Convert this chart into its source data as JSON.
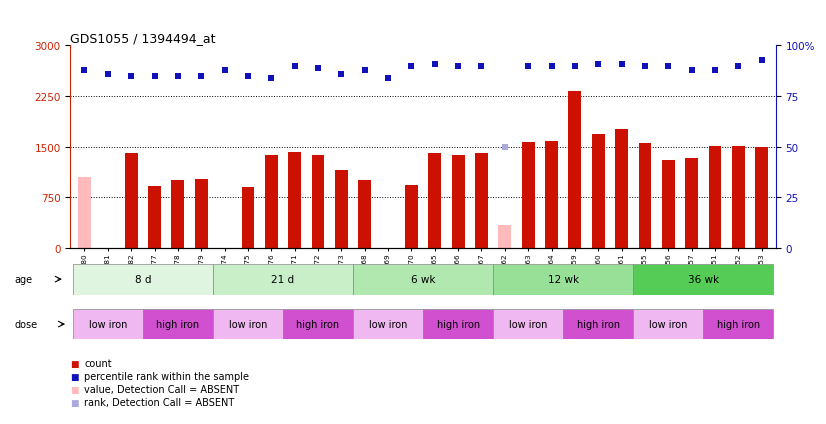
{
  "title": "GDS1055 / 1394494_at",
  "samples": [
    "GSM33580",
    "GSM33581",
    "GSM33582",
    "GSM33577",
    "GSM33578",
    "GSM33579",
    "GSM33574",
    "GSM33575",
    "GSM33576",
    "GSM33571",
    "GSM33572",
    "GSM33573",
    "GSM33568",
    "GSM33569",
    "GSM33570",
    "GSM33565",
    "GSM33566",
    "GSM33567",
    "GSM33562",
    "GSM33563",
    "GSM33564",
    "GSM33559",
    "GSM33560",
    "GSM33561",
    "GSM33555",
    "GSM33556",
    "GSM33557",
    "GSM33551",
    "GSM33552",
    "GSM33553"
  ],
  "bar_values": [
    1050,
    0,
    1400,
    920,
    1000,
    1020,
    0,
    900,
    1380,
    1420,
    1370,
    1150,
    1000,
    0,
    930,
    1400,
    1380,
    1400,
    340,
    1570,
    1590,
    2320,
    1690,
    1760,
    1560,
    1310,
    1340,
    1510,
    1510,
    1490
  ],
  "bar_absent": [
    true,
    false,
    false,
    false,
    false,
    false,
    true,
    false,
    false,
    false,
    false,
    false,
    false,
    true,
    false,
    false,
    false,
    false,
    true,
    false,
    false,
    false,
    false,
    false,
    false,
    false,
    false,
    false,
    false,
    false
  ],
  "dot_values_pct": [
    88,
    86,
    85,
    85,
    85,
    85,
    88,
    85,
    84,
    90,
    89,
    86,
    88,
    84,
    90,
    91,
    90,
    90,
    50,
    90,
    90,
    90,
    91,
    91,
    90,
    90,
    88,
    88,
    90,
    93
  ],
  "dot_absent": [
    false,
    false,
    false,
    false,
    false,
    false,
    false,
    false,
    false,
    false,
    false,
    false,
    false,
    false,
    false,
    false,
    false,
    false,
    true,
    false,
    false,
    false,
    false,
    false,
    false,
    false,
    false,
    false,
    false,
    false
  ],
  "age_groups": [
    {
      "label": "8 d",
      "start": 0,
      "end": 5,
      "color": "#e0f5e0"
    },
    {
      "label": "21 d",
      "start": 6,
      "end": 11,
      "color": "#c8efc8"
    },
    {
      "label": "6 wk",
      "start": 12,
      "end": 17,
      "color": "#b0e8b0"
    },
    {
      "label": "12 wk",
      "start": 18,
      "end": 23,
      "color": "#98e098"
    },
    {
      "label": "36 wk",
      "start": 24,
      "end": 29,
      "color": "#55cc55"
    }
  ],
  "dose_groups": [
    {
      "label": "low iron",
      "start": 0,
      "end": 2,
      "color": "#f0b8f0"
    },
    {
      "label": "high iron",
      "start": 3,
      "end": 5,
      "color": "#d050d0"
    },
    {
      "label": "low iron",
      "start": 6,
      "end": 8,
      "color": "#f0b8f0"
    },
    {
      "label": "high iron",
      "start": 9,
      "end": 11,
      "color": "#d050d0"
    },
    {
      "label": "low iron",
      "start": 12,
      "end": 14,
      "color": "#f0b8f0"
    },
    {
      "label": "high iron",
      "start": 15,
      "end": 17,
      "color": "#d050d0"
    },
    {
      "label": "low iron",
      "start": 18,
      "end": 20,
      "color": "#f0b8f0"
    },
    {
      "label": "high iron",
      "start": 21,
      "end": 23,
      "color": "#d050d0"
    },
    {
      "label": "low iron",
      "start": 24,
      "end": 26,
      "color": "#f0b8f0"
    },
    {
      "label": "high iron",
      "start": 27,
      "end": 29,
      "color": "#d050d0"
    }
  ],
  "ylim_left": [
    0,
    3000
  ],
  "yticks_left": [
    0,
    750,
    1500,
    2250,
    3000
  ],
  "yticks_right": [
    0,
    25,
    50,
    75,
    100
  ],
  "ytick_right_labels": [
    "0",
    "25",
    "50",
    "75",
    "100%"
  ],
  "hlines": [
    750,
    1500,
    2250
  ],
  "bar_color_present": "#cc1100",
  "bar_color_absent": "#ffbbbb",
  "dot_color_present": "#1111bb",
  "dot_color_absent": "#aaaadd"
}
